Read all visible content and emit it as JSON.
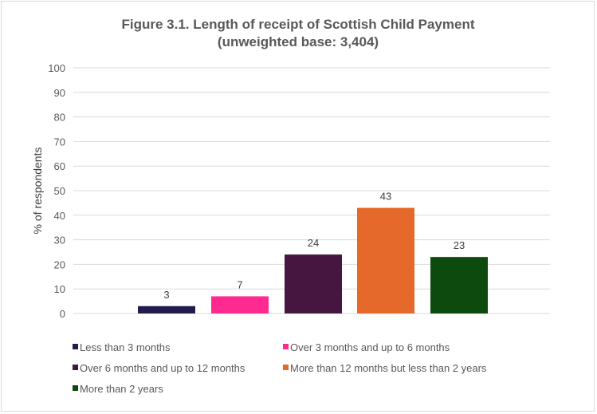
{
  "chart_data": {
    "type": "bar",
    "title": "Figure 3.1. Length of receipt of Scottish Child Payment",
    "subtitle": "(unweighted base: 3,404)",
    "xlabel": "",
    "ylabel": "% of respondents",
    "ylim": [
      0,
      100
    ],
    "yticks": [
      "0",
      "10",
      "20",
      "30",
      "40",
      "50",
      "60",
      "70",
      "80",
      "90",
      "100"
    ],
    "grid": true,
    "legend_position": "bottom",
    "series": [
      {
        "name": "Less than 3 months",
        "value": 3,
        "color": "#221c4e"
      },
      {
        "name": "Over 3 months and up to 6 months",
        "value": 7,
        "color": "#ff2a8f"
      },
      {
        "name": "Over 6 months and up to 12 months",
        "value": 24,
        "color": "#461640"
      },
      {
        "name": "More than 12 months but less than 2 years",
        "value": 43,
        "color": "#e5692a"
      },
      {
        "name": "More than 2 years",
        "value": 23,
        "color": "#0c4a0e"
      }
    ]
  }
}
